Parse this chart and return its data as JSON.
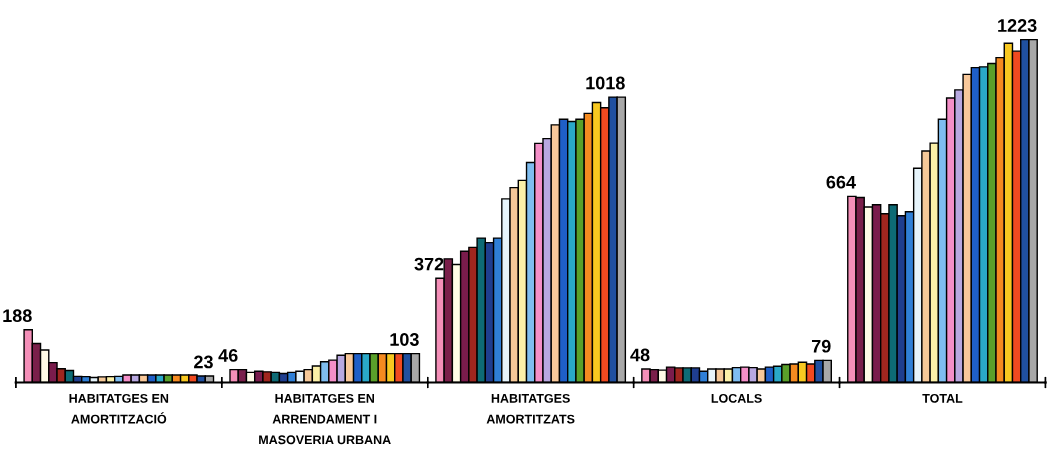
{
  "chart_data": {
    "type": "bar",
    "categories": [
      "HABITATGES EN\nAMORTITZACIÓ",
      "HABITATGES EN\nARRENDAMENT I\nMASOVERIA URBANA",
      "HABITATGES\nAMORTITZATS",
      "LOCALS",
      "TOTAL"
    ],
    "series": [
      {
        "color": "#f48fb8",
        "values": [
          188,
          46,
          372,
          48,
          664
        ],
        "value_labels": [
          "188",
          "46",
          "372",
          "48",
          "664"
        ]
      },
      {
        "color": "#7a1f4a",
        "values": [
          139,
          46,
          441,
          46,
          660
        ]
      },
      {
        "color": "#fffbe6",
        "values": [
          116,
          36,
          421,
          44,
          626
        ]
      },
      {
        "color": "#7a1c4c",
        "values": [
          71,
          40,
          468,
          55,
          634
        ]
      },
      {
        "color": "#a0261f",
        "values": [
          49,
          38,
          482,
          52,
          602
        ]
      },
      {
        "color": "#0e6b75",
        "values": [
          43,
          36,
          515,
          52,
          634
        ]
      },
      {
        "color": "#1f3e8f",
        "values": [
          22,
          32,
          499,
          52,
          595
        ]
      },
      {
        "color": "#2f7fd6",
        "values": [
          21,
          36,
          515,
          40,
          609
        ]
      },
      {
        "color": "#e6f4fb",
        "values": [
          18,
          40,
          655,
          48,
          764
        ]
      },
      {
        "color": "#f5c898",
        "values": [
          20,
          46,
          695,
          48,
          826
        ]
      },
      {
        "color": "#fbf0a8",
        "values": [
          21,
          59,
          721,
          48,
          854
        ]
      },
      {
        "color": "#7fbdf0",
        "values": [
          22,
          74,
          785,
          53,
          939
        ]
      },
      {
        "color": "#f48fc8",
        "values": [
          27,
          80,
          853,
          55,
          1015
        ]
      },
      {
        "color": "#b8a8e0",
        "values": [
          27,
          97,
          870,
          53,
          1044
        ]
      },
      {
        "color": "#f8c89a",
        "values": [
          27,
          103,
          919,
          48,
          1099
        ]
      },
      {
        "color": "#1f5fc8",
        "values": [
          27,
          103,
          939,
          55,
          1123
        ]
      },
      {
        "color": "#2aa8c8",
        "values": [
          27,
          103,
          931,
          58,
          1126
        ]
      },
      {
        "color": "#5aa02a",
        "values": [
          27,
          103,
          939,
          64,
          1138
        ]
      },
      {
        "color": "#f58a20",
        "values": [
          27,
          103,
          960,
          66,
          1159
        ]
      },
      {
        "color": "#f8c820",
        "values": [
          27,
          103,
          999,
          72,
          1210
        ]
      },
      {
        "color": "#f04a20",
        "values": [
          27,
          103,
          980,
          66,
          1182
        ]
      },
      {
        "color": "#2050a0",
        "values": [
          23,
          103,
          1018,
          79,
          1223
        ]
      },
      {
        "color": "#a8a8a8",
        "values": [
          23,
          103,
          1018,
          79,
          1223
        ],
        "value_labels": [
          "23",
          "103",
          "1018",
          "79",
          "1223"
        ]
      }
    ],
    "tick_labels": "x",
    "grid": false,
    "legend": false
  }
}
